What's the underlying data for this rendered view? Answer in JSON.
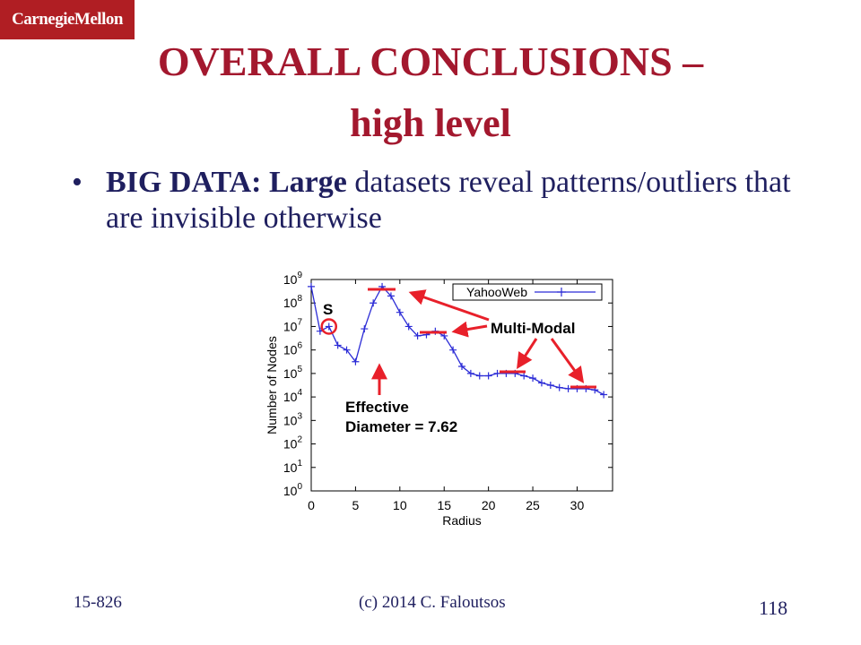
{
  "logo": {
    "text": "CarnegieMellon"
  },
  "title": {
    "line1": "OVERALL CONCLUSIONS –",
    "line2": "high level"
  },
  "bullet": {
    "dot": "•",
    "bold1": "BIG DATA:",
    "bold2": "Large",
    "text_rest": " datasets reveal patterns/outliers that are invisible otherwise"
  },
  "footer": {
    "course": "15-826",
    "copyright": "(c) 2014  C. Faloutsos",
    "page": "118"
  },
  "colors": {
    "title": "#a3182e",
    "accent_red": "#e8202a",
    "series": "#2b2bd6",
    "logo_bg": "#b01e23"
  },
  "chart_data": {
    "type": "line",
    "title": "",
    "xlabel": "Radius",
    "ylabel": "Number of Nodes",
    "log_y": true,
    "xlim": [
      0,
      34
    ],
    "ylim_exp": [
      0,
      9
    ],
    "x_ticks": [
      0,
      5,
      10,
      15,
      20,
      25,
      30
    ],
    "y_ticks_exp": [
      0,
      1,
      2,
      3,
      4,
      5,
      6,
      7,
      8,
      9
    ],
    "legend": "top-right",
    "series": [
      {
        "name": "YahooWeb",
        "x": [
          0,
          1,
          2,
          3,
          4,
          5,
          6,
          7,
          8,
          9,
          10,
          11,
          12,
          13,
          14,
          15,
          16,
          17,
          18,
          19,
          20,
          21,
          22,
          23,
          24,
          25,
          26,
          27,
          28,
          29,
          30,
          31,
          32,
          33
        ],
        "log10_y": [
          8.7,
          6.8,
          7.0,
          6.2,
          6.0,
          5.5,
          6.9,
          8.0,
          8.7,
          8.3,
          7.6,
          7.0,
          6.6,
          6.65,
          6.8,
          6.6,
          6.0,
          5.3,
          5.0,
          4.9,
          4.9,
          5.0,
          5.0,
          5.0,
          4.9,
          4.8,
          4.6,
          4.5,
          4.4,
          4.35,
          4.35,
          4.35,
          4.3,
          4.1
        ]
      }
    ],
    "annotations": {
      "s_label": "S",
      "effective": "Effective",
      "diameter": "Diameter = 7.62",
      "multimodal": "Multi-Modal"
    }
  }
}
